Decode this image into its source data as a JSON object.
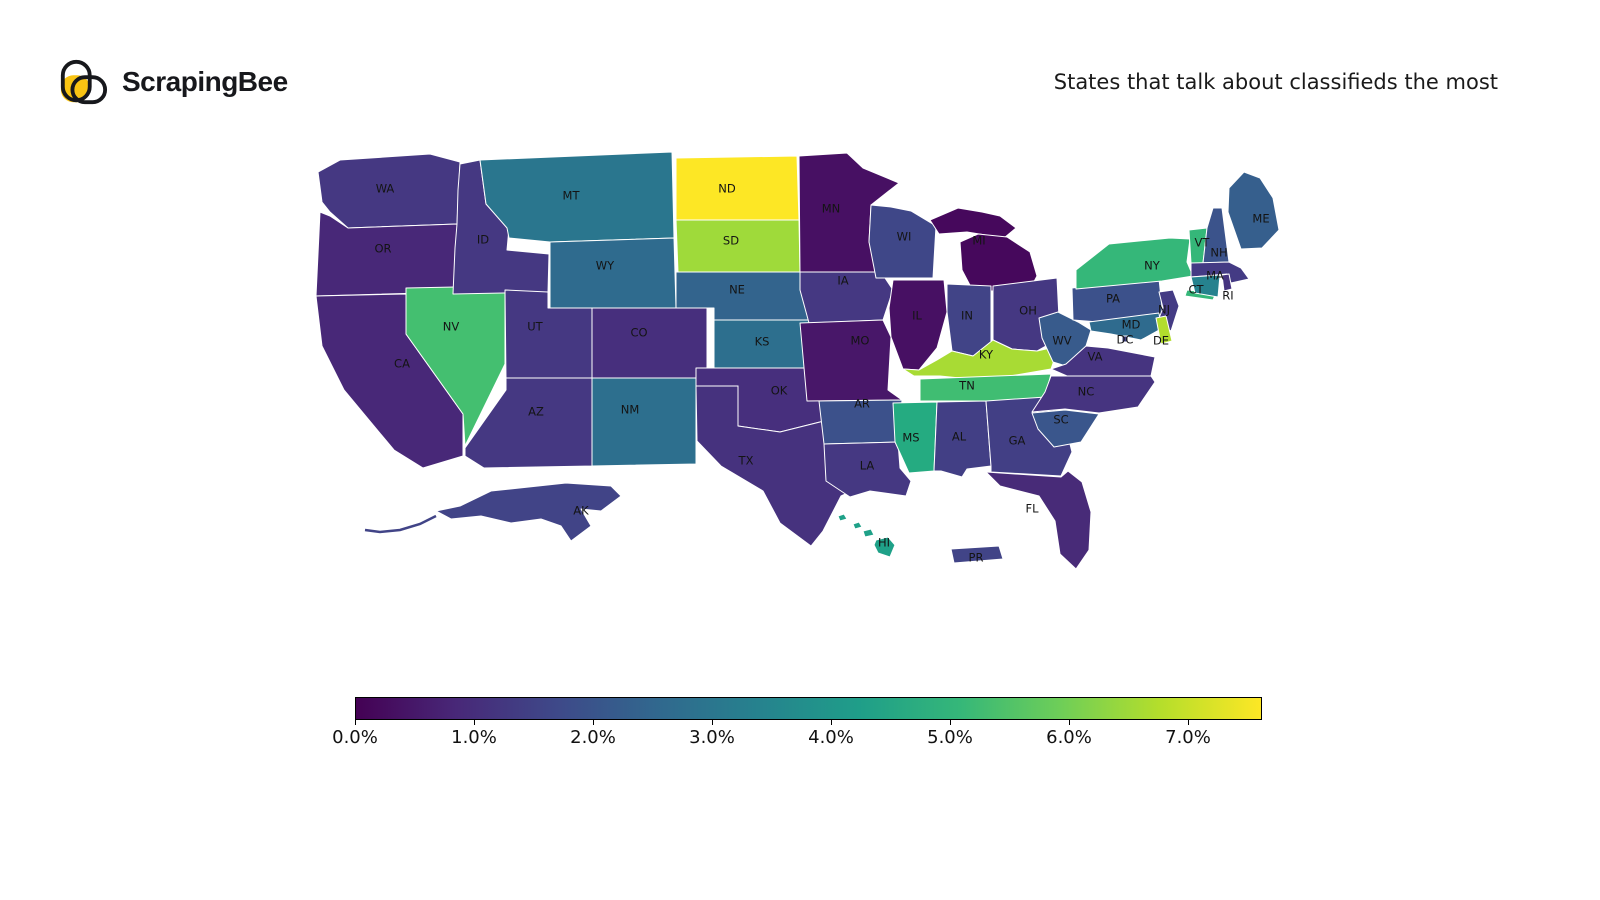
{
  "header": {
    "logo_text": "ScrapingBee",
    "title": "States that talk about classifieds the most"
  },
  "colors": {
    "background": "#ffffff",
    "logo_yellow": "#f9c413",
    "logo_outline": "#17181c",
    "state_border": "#ffffff",
    "state_label": "#141414",
    "viridis_stops": [
      "#440154",
      "#482878",
      "#3e4989",
      "#31688e",
      "#26828e",
      "#1f9e89",
      "#35b779",
      "#6ece58",
      "#b5de2b",
      "#fde725"
    ]
  },
  "chart_data": {
    "type": "heatmap",
    "subtype": "us_state_choropleth",
    "title": "States that talk about classifieds the most",
    "value_unit": "percent",
    "colormap": "viridis",
    "colorbar": {
      "orientation": "horizontal",
      "min": 0.0,
      "max": 7.6,
      "ticks": [
        "0.0%",
        "1.0%",
        "2.0%",
        "3.0%",
        "4.0%",
        "5.0%",
        "6.0%",
        "7.0%"
      ],
      "tick_values": [
        0,
        1,
        2,
        3,
        4,
        5,
        6,
        7
      ]
    },
    "states": [
      {
        "abbr": "WA",
        "value": 1.4,
        "color": "#453882"
      },
      {
        "abbr": "OR",
        "value": 0.8,
        "color": "#482878"
      },
      {
        "abbr": "CA",
        "value": 0.8,
        "color": "#482878"
      },
      {
        "abbr": "NV",
        "value": 4.9,
        "color": "#44bf70"
      },
      {
        "abbr": "ID",
        "value": 1.4,
        "color": "#453882"
      },
      {
        "abbr": "MT",
        "value": 3.3,
        "color": "#2a768e"
      },
      {
        "abbr": "WY",
        "value": 3.0,
        "color": "#2f6b8e"
      },
      {
        "abbr": "UT",
        "value": 1.4,
        "color": "#453882"
      },
      {
        "abbr": "CO",
        "value": 1.0,
        "color": "#472f7d"
      },
      {
        "abbr": "AZ",
        "value": 1.4,
        "color": "#453882"
      },
      {
        "abbr": "NM",
        "value": 3.1,
        "color": "#2d6f8e"
      },
      {
        "abbr": "ND",
        "value": 7.5,
        "color": "#fde725"
      },
      {
        "abbr": "SD",
        "value": 6.0,
        "color": "#9fda3a"
      },
      {
        "abbr": "NE",
        "value": 2.8,
        "color": "#33648d"
      },
      {
        "abbr": "KS",
        "value": 3.1,
        "color": "#2d6f8e"
      },
      {
        "abbr": "OK",
        "value": 1.0,
        "color": "#472f7d"
      },
      {
        "abbr": "TX",
        "value": 1.1,
        "color": "#46327e"
      },
      {
        "abbr": "MN",
        "value": 0.4,
        "color": "#471063"
      },
      {
        "abbr": "IA",
        "value": 1.4,
        "color": "#453882"
      },
      {
        "abbr": "MO",
        "value": 0.5,
        "color": "#481769"
      },
      {
        "abbr": "AR",
        "value": 2.1,
        "color": "#3c518b"
      },
      {
        "abbr": "LA",
        "value": 1.4,
        "color": "#453882"
      },
      {
        "abbr": "WI",
        "value": 1.8,
        "color": "#3f4788"
      },
      {
        "abbr": "IL",
        "value": 0.4,
        "color": "#471063"
      },
      {
        "abbr": "MS",
        "value": 4.2,
        "color": "#25ab81"
      },
      {
        "abbr": "MI",
        "value": 0.2,
        "color": "#46085c"
      },
      {
        "abbr": "IN",
        "value": 1.7,
        "color": "#414487"
      },
      {
        "abbr": "OH",
        "value": 1.4,
        "color": "#453882"
      },
      {
        "abbr": "KY",
        "value": 6.2,
        "color": "#a8db34"
      },
      {
        "abbr": "TN",
        "value": 4.8,
        "color": "#40bd72"
      },
      {
        "abbr": "AL",
        "value": 1.6,
        "color": "#423f85"
      },
      {
        "abbr": "GA",
        "value": 1.6,
        "color": "#423f85"
      },
      {
        "abbr": "WV",
        "value": 2.5,
        "color": "#385b8c"
      },
      {
        "abbr": "VA",
        "value": 1.3,
        "color": "#463480"
      },
      {
        "abbr": "NC",
        "value": 1.3,
        "color": "#463480"
      },
      {
        "abbr": "SC",
        "value": 2.3,
        "color": "#3a568c"
      },
      {
        "abbr": "FL",
        "value": 0.9,
        "color": "#482b78"
      },
      {
        "abbr": "PA",
        "value": 2.1,
        "color": "#3c518b"
      },
      {
        "abbr": "NY",
        "value": 4.6,
        "color": "#35b779"
      },
      {
        "abbr": "ME",
        "value": 2.6,
        "color": "#365f8d"
      },
      {
        "abbr": "VT",
        "value": 4.6,
        "color": "#35b779"
      },
      {
        "abbr": "NH",
        "value": 2.2,
        "color": "#3b538b"
      },
      {
        "abbr": "MA",
        "value": 1.5,
        "color": "#443b84"
      },
      {
        "abbr": "CT",
        "value": 3.6,
        "color": "#26828e"
      },
      {
        "abbr": "RI",
        "value": 1.3,
        "color": "#463480"
      },
      {
        "abbr": "NJ",
        "value": 1.5,
        "color": "#443b84"
      },
      {
        "abbr": "MD",
        "value": 3.0,
        "color": "#2f6b8e"
      },
      {
        "abbr": "DE",
        "value": 6.4,
        "color": "#b2dd2d"
      },
      {
        "abbr": "DC",
        "value": 1.7,
        "color": "#414487"
      },
      {
        "abbr": "AK",
        "value": 1.7,
        "color": "#414487"
      },
      {
        "abbr": "HI",
        "value": 4.0,
        "color": "#1fa188"
      },
      {
        "abbr": "PR",
        "value": 1.7,
        "color": "#414487"
      }
    ]
  }
}
